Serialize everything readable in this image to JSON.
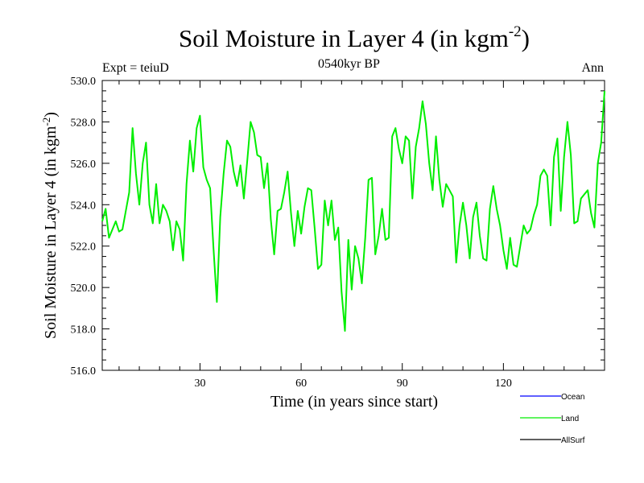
{
  "chart_data": {
    "type": "line",
    "title": "Soil Moisture in Layer 4 (in kgm",
    "title_superscript": "-2",
    "title_close": ")",
    "subtitle": "0540kyr BP",
    "left_annotation": "Expt = teiuD",
    "right_annotation": "Ann",
    "xlabel": "Time (in years since start)",
    "ylabel": "Soil Moisture in Layer 4 (in kgm",
    "ylabel_superscript": "-2",
    "ylabel_close": ")",
    "xlim": [
      1,
      150
    ],
    "ylim": [
      516,
      530
    ],
    "x_major_ticks": [
      30,
      60,
      90,
      120
    ],
    "x_tick_labels": [
      "30",
      "60",
      "90",
      "120"
    ],
    "x_minor_step": 6,
    "y_major_ticks": [
      516,
      518,
      520,
      522,
      524,
      526,
      528,
      530
    ],
    "y_tick_labels": [
      "516.0",
      "518.0",
      "520.0",
      "522.0",
      "524.0",
      "526.0",
      "528.0",
      "530.0"
    ],
    "y_minor_step": 0.5,
    "grid": false,
    "legend_position": "bottom-right",
    "legend": [
      {
        "name": "Ocean",
        "color": "#0000ff"
      },
      {
        "name": "Land",
        "color": "#00ee00"
      },
      {
        "name": "AllSurf",
        "color": "#000000"
      }
    ],
    "series": [
      {
        "name": "Land",
        "color": "#00ee00",
        "x": [
          1,
          2,
          3,
          4,
          5,
          6,
          7,
          8,
          9,
          10,
          11,
          12,
          13,
          14,
          15,
          16,
          17,
          18,
          19,
          20,
          21,
          22,
          23,
          24,
          25,
          26,
          27,
          28,
          29,
          30,
          31,
          32,
          33,
          34,
          35,
          36,
          37,
          38,
          39,
          40,
          41,
          42,
          43,
          44,
          45,
          46,
          47,
          48,
          49,
          50,
          51,
          52,
          53,
          54,
          55,
          56,
          57,
          58,
          59,
          60,
          61,
          62,
          63,
          64,
          65,
          66,
          67,
          68,
          69,
          70,
          71,
          72,
          73,
          74,
          75,
          76,
          77,
          78,
          79,
          80,
          81,
          82,
          83,
          84,
          85,
          86,
          87,
          88,
          89,
          90,
          91,
          92,
          93,
          94,
          95,
          96,
          97,
          98,
          99,
          100,
          101,
          102,
          103,
          104,
          105,
          106,
          107,
          108,
          109,
          110,
          111,
          112,
          113,
          114,
          115,
          116,
          117,
          118,
          119,
          120,
          121,
          122,
          123,
          124,
          125,
          126,
          127,
          128,
          129,
          130,
          131,
          132,
          133,
          134,
          135,
          136,
          137,
          138,
          139,
          140,
          141,
          142,
          143,
          144,
          145,
          146,
          147,
          148,
          149,
          150
        ],
        "values": [
          523.2,
          523.8,
          522.4,
          522.8,
          523.2,
          522.7,
          522.8,
          523.7,
          524.6,
          527.7,
          525.5,
          524.0,
          526.0,
          527.0,
          524.0,
          523.1,
          525.0,
          523.1,
          524.0,
          523.7,
          523.2,
          521.8,
          523.2,
          522.8,
          521.3,
          525.0,
          527.1,
          525.6,
          527.7,
          528.3,
          525.8,
          525.2,
          524.8,
          521.9,
          519.3,
          523.4,
          525.5,
          527.1,
          526.8,
          525.6,
          524.9,
          525.9,
          524.3,
          526.1,
          528.0,
          527.5,
          526.4,
          526.3,
          524.8,
          526.0,
          523.3,
          521.6,
          523.7,
          523.8,
          524.6,
          525.6,
          523.6,
          522.0,
          523.7,
          522.6,
          523.9,
          524.8,
          524.7,
          522.9,
          520.9,
          521.1,
          524.2,
          523.0,
          524.2,
          522.3,
          522.9,
          519.8,
          517.9,
          522.3,
          519.9,
          522.0,
          521.4,
          520.2,
          522.4,
          525.2,
          525.3,
          521.6,
          522.5,
          523.8,
          522.3,
          522.4,
          527.3,
          527.7,
          526.7,
          526.0,
          527.3,
          527.1,
          524.3,
          526.8,
          527.7,
          529.0,
          527.9,
          526.0,
          524.7,
          527.3,
          525.2,
          523.9,
          525.0,
          524.7,
          524.4,
          521.2,
          523.0,
          524.1,
          523.0,
          521.4,
          523.4,
          524.1,
          522.5,
          521.4,
          521.3,
          523.8,
          524.9,
          523.8,
          523.0,
          521.8,
          520.9,
          522.4,
          521.1,
          521.0,
          522.0,
          523.0,
          522.6,
          522.8,
          523.5,
          524.0,
          525.4,
          525.7,
          525.4,
          523.0,
          526.3,
          527.2,
          523.7,
          526.3,
          528.0,
          526.4,
          523.1,
          523.2,
          524.3,
          524.5,
          524.7,
          523.6,
          522.9,
          526.0,
          527.0,
          529.5
        ]
      }
    ]
  }
}
